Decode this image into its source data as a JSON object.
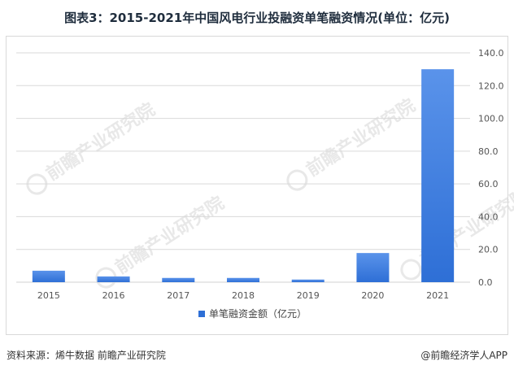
{
  "title": "图表3：2015-2021年中国风电行业投融资单笔融资情况(单位：亿元)",
  "footer": {
    "source": "资料来源：烯牛数据 前瞻产业研究院",
    "brand": "@前瞻经济学人APP"
  },
  "watermark": {
    "text": "前瞻产业研究院"
  },
  "colors": {
    "bar_top": "#5a93ea",
    "bar_bottom": "#2e6fd6",
    "grid": "#d9d9d9",
    "axis_text": "#555555"
  },
  "chart_data": {
    "type": "bar",
    "categories": [
      "2015",
      "2016",
      "2017",
      "2018",
      "2019",
      "2020",
      "2021"
    ],
    "series": [
      {
        "name": "单笔融资金额（亿元）",
        "values": [
          7.0,
          3.5,
          2.6,
          2.6,
          1.6,
          17.8,
          130.0
        ]
      }
    ],
    "ylim": [
      0,
      140
    ],
    "yticks": [
      "0.0",
      "20.0",
      "40.0",
      "60.0",
      "80.0",
      "100.0",
      "120.0",
      "140.0"
    ],
    "y_axis_side": "right",
    "grid": true,
    "legend_position": "bottom-center"
  }
}
